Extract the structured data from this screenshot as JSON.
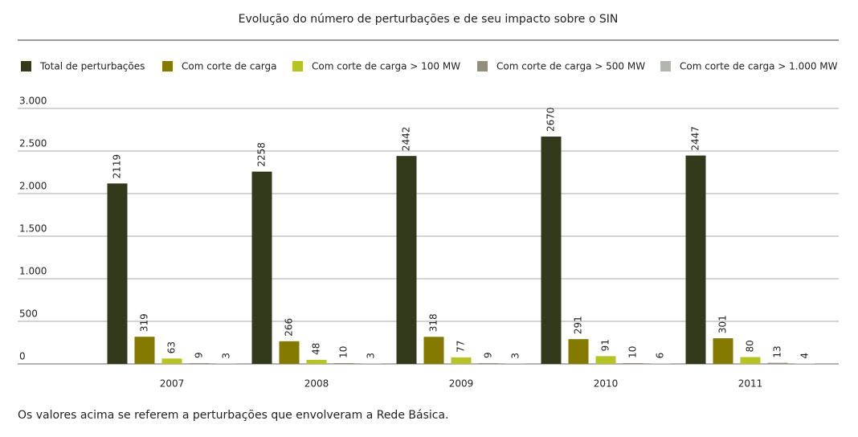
{
  "chart_data": {
    "type": "bar",
    "title": "Evolução do número de perturbações e de seu impacto sobre o SIN",
    "note": "Os valores acima se referem a perturbações que envolveram a Rede Básica.",
    "categories": [
      "2007",
      "2008",
      "2009",
      "2010",
      "2011"
    ],
    "series": [
      {
        "name": "Total de perturbações",
        "color": "#333a1c",
        "values": [
          2119,
          2258,
          2442,
          2670,
          2447
        ]
      },
      {
        "name": "Com corte de carga",
        "color": "#857a00",
        "values": [
          319,
          266,
          318,
          291,
          301
        ]
      },
      {
        "name": "Com corte de carga > 100 MW",
        "color": "#b5c424",
        "values": [
          63,
          48,
          77,
          91,
          80
        ]
      },
      {
        "name": "Com corte de carga > 500 MW",
        "color": "#948f7d",
        "values": [
          9,
          10,
          9,
          10,
          13
        ]
      },
      {
        "name": "Com corte de carga > 1.000 MW",
        "color": "#b3b5b0",
        "values": [
          3,
          3,
          3,
          6,
          4
        ]
      }
    ],
    "ylim": [
      0,
      3000
    ],
    "yticks": [
      0,
      500,
      {
        "value": 1000,
        "label": "1.000"
      },
      {
        "value": 1500,
        "label": "1.500"
      },
      {
        "value": 2000,
        "label": "2.000"
      },
      {
        "value": 2500,
        "label": "2.500"
      },
      {
        "value": 3000,
        "label": "3.000"
      }
    ],
    "grid": true,
    "legend": "top"
  }
}
